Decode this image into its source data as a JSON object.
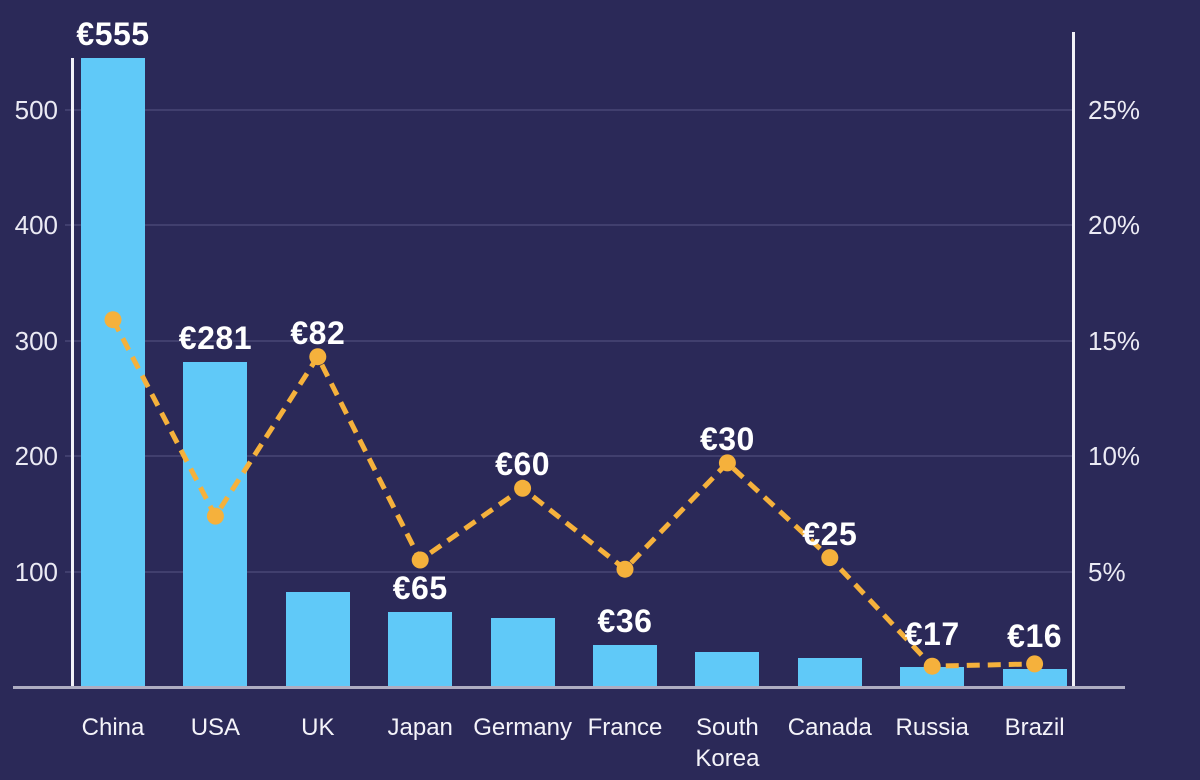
{
  "chart_data": {
    "type": "bar",
    "subtype": "combo-bar-line-dual-axis",
    "title": "",
    "xlabel": "",
    "ylabel": "",
    "categories": [
      "China",
      "USA",
      "UK",
      "Japan",
      "Germany",
      "France",
      "South Korea",
      "Canada",
      "Russia",
      "Brazil"
    ],
    "x_tick_labels": [
      "China",
      "USA",
      "UK",
      "Japan",
      "Germany",
      "France",
      "South\nKorea",
      "Canada",
      "Russia",
      "Brazil"
    ],
    "series": [
      {
        "name": "value-eur",
        "type": "bar",
        "unit": "EUR",
        "values": [
          555,
          281,
          82,
          65,
          60,
          36,
          30,
          25,
          17,
          16
        ],
        "data_labels": [
          "€555",
          "€281",
          "€82",
          "€65",
          "€60",
          "€36",
          "€30",
          "€25",
          "€17",
          "€16"
        ],
        "axis": "left"
      },
      {
        "name": "percentage-line",
        "type": "line",
        "style": "dashed-with-round-markers",
        "unit": "%",
        "values": [
          15.9,
          7.4,
          14.3,
          5.5,
          8.6,
          5.1,
          9.7,
          5.6,
          0.9,
          1.0
        ],
        "axis": "right"
      }
    ],
    "left_axis": {
      "tick_values": [
        100,
        200,
        300,
        400,
        500
      ],
      "tick_labels": [
        "100",
        "200",
        "300",
        "400",
        "500"
      ],
      "range": [
        0,
        545
      ]
    },
    "right_axis": {
      "tick_values": [
        5,
        10,
        15,
        20,
        25
      ],
      "tick_labels": [
        "5%",
        "10%",
        "15%",
        "20%",
        "25%"
      ],
      "range": [
        0,
        28
      ]
    },
    "grid": true,
    "legend": false,
    "colors": {
      "background": "#2B2958",
      "bar_fill": "#60C9F8",
      "line_stroke": "#F5B13C",
      "marker_fill": "#F5B13C",
      "gridline": "#413F6E",
      "axis_line": "#F2F1F7",
      "baseline": "#AEADC2",
      "tick_text": "#EBEAF4",
      "x_label_text": "#F4F3F9",
      "value_label_text": "#FFFFFF"
    }
  }
}
